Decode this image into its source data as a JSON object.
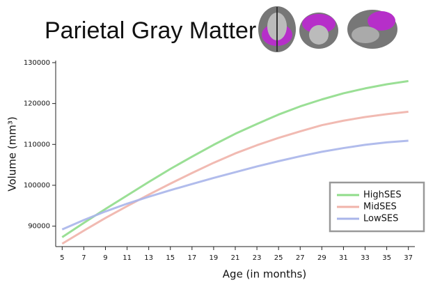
{
  "chart_data": {
    "type": "line",
    "title": "Parietal Gray Matter",
    "x_label": "Age (in months)",
    "y_label": "Volume (mm³)",
    "x": [
      5,
      7,
      9,
      11,
      13,
      15,
      17,
      19,
      21,
      23,
      25,
      27,
      29,
      31,
      33,
      35,
      37
    ],
    "series": [
      {
        "name": "HighSES",
        "color": "#8fdc8a",
        "values": [
          87300,
          90800,
          94200,
          97500,
          100800,
          104000,
          107000,
          109900,
          112600,
          115000,
          117300,
          119300,
          121000,
          122500,
          123700,
          124700,
          125500
        ]
      },
      {
        "name": "MidSES",
        "color": "#f0b3aa",
        "values": [
          85700,
          88900,
          92000,
          94900,
          97700,
          100400,
          103000,
          105500,
          107800,
          109800,
          111600,
          113200,
          114700,
          115800,
          116700,
          117400,
          118000
        ]
      },
      {
        "name": "LowSES",
        "color": "#a9b5ea",
        "values": [
          89200,
          91500,
          93600,
          95500,
          97200,
          98800,
          100300,
          101800,
          103200,
          104600,
          105900,
          107100,
          108200,
          109100,
          109900,
          110500,
          110900
        ]
      }
    ],
    "xlim": [
      4.4,
      37.6
    ],
    "ylim": [
      85000,
      130500
    ],
    "xticks": [
      5,
      7,
      9,
      11,
      13,
      15,
      17,
      19,
      21,
      23,
      25,
      27,
      29,
      31,
      33,
      35,
      37
    ],
    "yticks": [
      90000,
      100000,
      110000,
      120000,
      130000
    ],
    "legend": "lower right"
  }
}
